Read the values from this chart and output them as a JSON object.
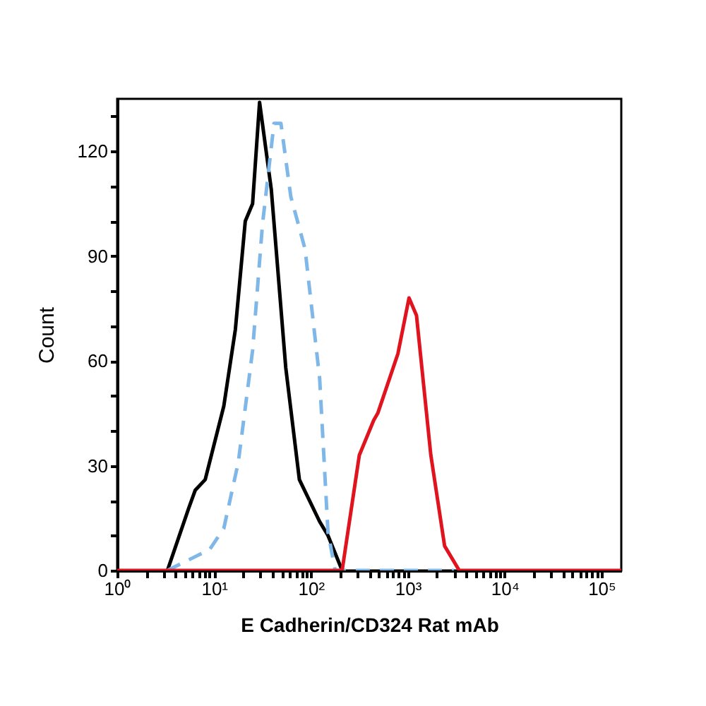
{
  "chart_data": {
    "type": "line",
    "xlabel": "E Cadherin/CD324 Rat mAb",
    "ylabel": "Count",
    "log": "x",
    "grid": false,
    "marker": "none",
    "xlim": [
      1,
      160000
    ],
    "ylim": [
      0,
      135
    ],
    "xticks": [
      {
        "value": 1,
        "label": "10⁰"
      },
      {
        "value": 2,
        "label": null
      },
      {
        "value": 3,
        "label": null
      },
      {
        "value": 4,
        "label": null
      },
      {
        "value": 5,
        "label": null
      },
      {
        "value": 6,
        "label": null
      },
      {
        "value": 7,
        "label": null
      },
      {
        "value": 8,
        "label": null
      },
      {
        "value": 9,
        "label": null
      },
      {
        "value": 10,
        "label": "10¹"
      },
      {
        "value": 20,
        "label": null
      },
      {
        "value": 30,
        "label": null
      },
      {
        "value": 40,
        "label": null
      },
      {
        "value": 50,
        "label": null
      },
      {
        "value": 60,
        "label": null
      },
      {
        "value": 70,
        "label": null
      },
      {
        "value": 80,
        "label": null
      },
      {
        "value": 90,
        "label": null
      },
      {
        "value": 100,
        "label": "10²"
      },
      {
        "value": 200,
        "label": null
      },
      {
        "value": 300,
        "label": null
      },
      {
        "value": 400,
        "label": null
      },
      {
        "value": 500,
        "label": null
      },
      {
        "value": 600,
        "label": null
      },
      {
        "value": 700,
        "label": null
      },
      {
        "value": 800,
        "label": null
      },
      {
        "value": 900,
        "label": null
      },
      {
        "value": 1000,
        "label": "10³"
      },
      {
        "value": 2000,
        "label": null
      },
      {
        "value": 3000,
        "label": null
      },
      {
        "value": 4000,
        "label": null
      },
      {
        "value": 5000,
        "label": null
      },
      {
        "value": 6000,
        "label": null
      },
      {
        "value": 7000,
        "label": null
      },
      {
        "value": 8000,
        "label": null
      },
      {
        "value": 9000,
        "label": null
      },
      {
        "value": 10000,
        "label": "10⁴"
      },
      {
        "value": 20000,
        "label": null
      },
      {
        "value": 30000,
        "label": null
      },
      {
        "value": 40000,
        "label": null
      },
      {
        "value": 50000,
        "label": null
      },
      {
        "value": 60000,
        "label": null
      },
      {
        "value": 70000,
        "label": null
      },
      {
        "value": 80000,
        "label": null
      },
      {
        "value": 90000,
        "label": null
      },
      {
        "value": 100000,
        "label": "10⁵"
      }
    ],
    "yticks": [
      0,
      {
        "value": 10,
        "label": null
      },
      {
        "value": 20,
        "label": null
      },
      30,
      {
        "value": 40,
        "label": null
      },
      {
        "value": 50,
        "label": null
      },
      60,
      {
        "value": 70,
        "label": null
      },
      {
        "value": 80,
        "label": null
      },
      90,
      {
        "value": 100,
        "label": null
      },
      {
        "value": 110,
        "label": null
      },
      120,
      {
        "value": 130,
        "label": null
      }
    ],
    "series": [
      {
        "color": "#000000",
        "line_style": "solid",
        "x": [
          3.3,
          5.5,
          6.4,
          8.1,
          12.6,
          16.6,
          21,
          25,
          29.5,
          39,
          55,
          76,
          123,
          150,
          210
        ],
        "values": [
          0,
          18,
          23,
          26,
          47,
          69,
          100,
          105,
          134,
          109,
          58,
          26,
          14,
          10,
          0
        ]
      },
      {
        "color": "#7fb8e8",
        "line_style": "dashed",
        "x": [
          3.3,
          9,
          12.6,
          17.8,
          25,
          31.6,
          41.6,
          49,
          62,
          87,
          123,
          150,
          178,
          3000
        ],
        "values": [
          0,
          6,
          12,
          31,
          63,
          99,
          128,
          128,
          107,
          92,
          55,
          11,
          0,
          0
        ]
      },
      {
        "color": "#e0141e",
        "line_style": "solid",
        "x": [
          1,
          210,
          316,
          445,
          490,
          790,
          1030,
          1230,
          1730,
          2400,
          3400,
          160000
        ],
        "values": [
          0,
          0,
          33,
          43,
          45,
          62,
          78,
          73,
          33,
          7,
          0,
          0
        ]
      }
    ]
  }
}
